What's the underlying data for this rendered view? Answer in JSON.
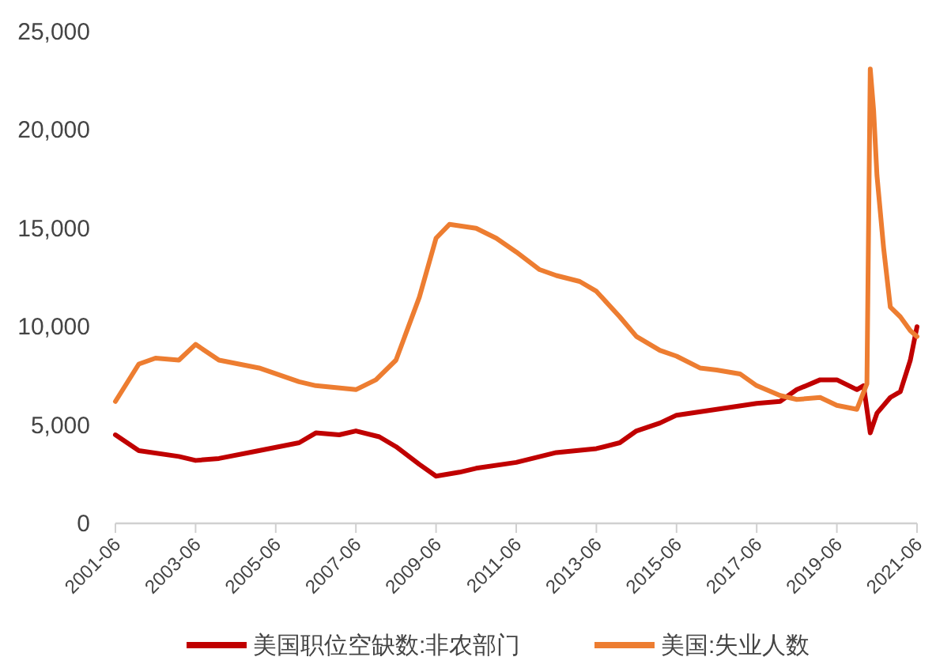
{
  "chart_data": {
    "type": "line",
    "xlim": [
      "2001-06",
      "2021-06"
    ],
    "ylim": [
      0,
      25000
    ],
    "yticks": [
      0,
      {
        "value": 5000,
        "label": "5,000"
      },
      {
        "value": 10000,
        "label": "10,000"
      },
      {
        "value": 15000,
        "label": "15,000"
      },
      {
        "value": 20000,
        "label": "20,000"
      },
      {
        "value": 25000,
        "label": "25,000"
      }
    ],
    "xticks": [
      {
        "value": "2001-06",
        "label": "2001-06"
      },
      {
        "value": "2003-06",
        "label": "2003-06"
      },
      {
        "value": "2005-06",
        "label": "2005-06"
      },
      {
        "value": "2007-06",
        "label": "2007-06"
      },
      {
        "value": "2009-06",
        "label": "2009-06"
      },
      {
        "value": "2011-06",
        "label": "2011-06"
      },
      {
        "value": "2013-06",
        "label": "2013-06"
      },
      {
        "value": "2015-06",
        "label": "2015-06"
      },
      {
        "value": "2017-06",
        "label": "2017-06"
      },
      {
        "value": "2019-06",
        "label": "2019-06"
      },
      {
        "value": "2021-06",
        "label": "2021-06"
      }
    ],
    "grid": false,
    "legend": "bottom",
    "marker": "none",
    "line_style": "solid",
    "series": [
      {
        "name": "美国职位空缺数:非农部门",
        "color": "#c00000",
        "x": [
          "2001-06",
          "2002-01",
          "2003-01",
          "2003-06",
          "2004-01",
          "2005-01",
          "2006-01",
          "2006-06",
          "2007-01",
          "2007-06",
          "2008-01",
          "2008-06",
          "2009-01",
          "2009-06",
          "2010-01",
          "2010-06",
          "2011-06",
          "2012-06",
          "2013-06",
          "2014-01",
          "2014-06",
          "2015-01",
          "2015-06",
          "2016-06",
          "2017-06",
          "2018-01",
          "2018-06",
          "2019-01",
          "2019-06",
          "2019-12",
          "2020-02",
          "2020-04",
          "2020-06",
          "2020-10",
          "2021-01",
          "2021-04",
          "2021-06"
        ],
        "values": [
          4500,
          3700,
          3400,
          3200,
          3300,
          3700,
          4100,
          4600,
          4500,
          4700,
          4400,
          3900,
          3000,
          2400,
          2600,
          2800,
          3100,
          3600,
          3800,
          4100,
          4700,
          5100,
          5500,
          5800,
          6100,
          6200,
          6800,
          7300,
          7300,
          6800,
          7000,
          4600,
          5600,
          6400,
          6700,
          8300,
          10000
        ]
      },
      {
        "name": "美国:失业人数",
        "color": "#ed7d31",
        "x": [
          "2001-06",
          "2002-01",
          "2002-06",
          "2003-01",
          "2003-06",
          "2004-01",
          "2005-01",
          "2006-01",
          "2006-06",
          "2007-06",
          "2007-12",
          "2008-06",
          "2009-01",
          "2009-06",
          "2009-10",
          "2010-06",
          "2010-12",
          "2011-06",
          "2012-01",
          "2012-06",
          "2013-01",
          "2013-06",
          "2014-01",
          "2014-06",
          "2015-01",
          "2015-06",
          "2016-01",
          "2016-06",
          "2017-01",
          "2017-06",
          "2018-01",
          "2018-06",
          "2019-01",
          "2019-06",
          "2019-12",
          "2020-03",
          "2020-04",
          "2020-05",
          "2020-06",
          "2020-08",
          "2020-10",
          "2021-01",
          "2021-04",
          "2021-06"
        ],
        "values": [
          6200,
          8100,
          8400,
          8300,
          9100,
          8300,
          7900,
          7200,
          7000,
          6800,
          7300,
          8300,
          11500,
          14500,
          15200,
          15000,
          14500,
          13800,
          12900,
          12600,
          12300,
          11800,
          10500,
          9500,
          8800,
          8500,
          7900,
          7800,
          7600,
          7000,
          6500,
          6300,
          6400,
          6000,
          5800,
          7100,
          23100,
          21000,
          17700,
          14000,
          11000,
          10500,
          9800,
          9500
        ]
      }
    ]
  }
}
